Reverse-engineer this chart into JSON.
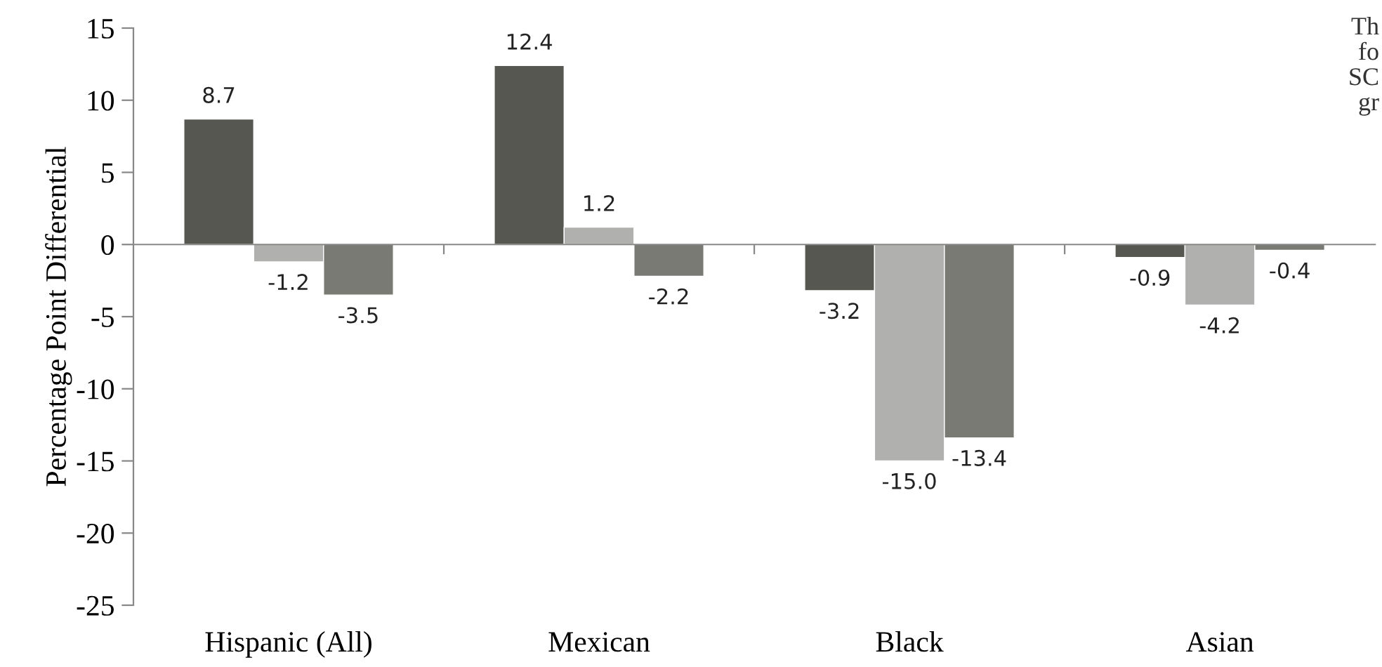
{
  "chart_data": {
    "type": "bar",
    "ylabel": "Percentage Point Differential",
    "categories": [
      "Hispanic (All)",
      "Mexican",
      "Black",
      "Asian"
    ],
    "series": [
      {
        "color": "#575752",
        "values": [
          8.7,
          12.4,
          -3.2,
          -0.9
        ],
        "value_labels": [
          "8.7",
          "12.4",
          "-3.2",
          "-0.9"
        ]
      },
      {
        "color": "#b0b0ae",
        "values": [
          -1.2,
          1.2,
          -15,
          -4.2
        ],
        "value_labels": [
          "-1.2",
          "1.2",
          "-15.0",
          "-4.2"
        ]
      },
      {
        "color": "#7a7a75",
        "values": [
          -3.5,
          -2.2,
          -13.4,
          -0.4
        ],
        "value_labels": [
          "-3.5",
          "-2.2",
          "-13.4",
          "-0.4"
        ]
      }
    ],
    "ylim": [
      -25,
      15
    ],
    "yticks": [
      -25,
      -20,
      -15,
      -10,
      -5,
      0,
      5,
      10,
      15
    ],
    "annotations": [
      "Th",
      "fo",
      "SC",
      "gr"
    ]
  }
}
